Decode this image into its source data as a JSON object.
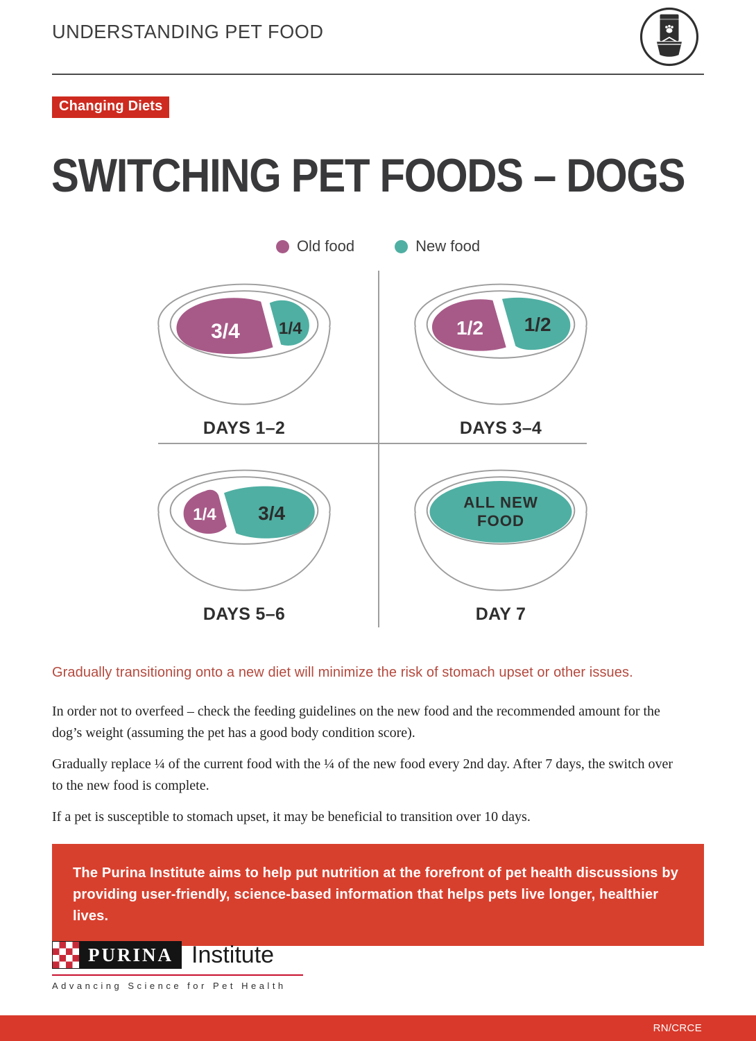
{
  "header": {
    "title": "UNDERSTANDING PET FOOD",
    "icon": "pet-food-bag-and-bowl-icon"
  },
  "badge": "Changing Diets",
  "title": "SWITCHING PET FOODS – DOGS",
  "colors": {
    "old_food": "#A75A88",
    "new_food": "#4FAFA2",
    "badge_red": "#CE2A1F",
    "banner_red": "#D8402E",
    "footer_red": "#D8392B",
    "accent_red": "#B4493D"
  },
  "legend": [
    {
      "key": "old_food",
      "label": "Old food"
    },
    {
      "key": "new_food",
      "label": "New food"
    }
  ],
  "bowls": [
    {
      "caption": "DAYS 1–2",
      "portions": [
        {
          "food": "old_food",
          "label": "3/4"
        },
        {
          "food": "new_food",
          "label": "1/4"
        }
      ]
    },
    {
      "caption": "DAYS 3–4",
      "portions": [
        {
          "food": "old_food",
          "label": "1/2"
        },
        {
          "food": "new_food",
          "label": "1/2"
        }
      ]
    },
    {
      "caption": "DAYS 5–6",
      "portions": [
        {
          "food": "old_food",
          "label": "1/4"
        },
        {
          "food": "new_food",
          "label": "3/4"
        }
      ]
    },
    {
      "caption": "DAY 7",
      "portions": [
        {
          "food": "new_food",
          "label": "ALL NEW FOOD"
        }
      ]
    }
  ],
  "highlight": "Gradually transitioning onto a new diet will minimize the risk of stomach upset or other issues.",
  "paragraphs": [
    "In order not to overfeed – check the feeding guidelines on the new food and the recommended amount for the dog’s weight (assuming the pet has a good body condition score).",
    "Gradually replace ¼ of the current food with the ¼ of the new food every 2nd day. After 7 days, the switch over to the new food is complete.",
    "If a pet is susceptible to stomach upset, it may be beneficial to transition over 10 days."
  ],
  "banner": "The Purina Institute aims to help put nutrition at the forefront of pet health discussions by providing user-friendly, science-based information that helps pets live longer, healthier lives.",
  "logo": {
    "brand": "PURINA",
    "suffix": "Institute",
    "tagline": "Advancing Science for Pet Health"
  },
  "footer": {
    "code": "RN/CRCE"
  }
}
